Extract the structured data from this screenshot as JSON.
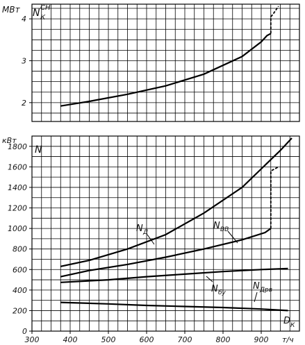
{
  "chart_data": [
    {
      "type": "line",
      "ylabel": "МВт",
      "symbol": "N",
      "symbol_sub": "К",
      "symbol_sup": "СН",
      "ylim": [
        1.55,
        4.35
      ],
      "xlim": [
        300,
        1000
      ],
      "yticks": [
        2,
        3,
        4
      ],
      "y_tick_labels": [
        "2",
        "3",
        "4"
      ],
      "grid": true,
      "series": [
        {
          "name": "",
          "x": [
            375,
            450,
            550,
            650,
            750,
            850,
            900,
            915,
            925
          ],
          "y": [
            1.92,
            2.03,
            2.2,
            2.4,
            2.68,
            3.1,
            3.45,
            3.6,
            3.65
          ],
          "style": "solid"
        },
        {
          "name": "",
          "x": [
            925,
            925,
            930,
            945
          ],
          "y": [
            3.65,
            4.05,
            4.1,
            4.3
          ],
          "style": "dashed-step"
        }
      ]
    },
    {
      "type": "line",
      "ylabel": "кВт",
      "symbol": "N",
      "xlabel": "т/ч",
      "xlabel_symbol": "D",
      "xlabel_symbol_sub": "К",
      "xlim": [
        300,
        1000
      ],
      "ylim": [
        0,
        1900
      ],
      "xticks": [
        300,
        400,
        500,
        600,
        700,
        800,
        900
      ],
      "x_tick_labels": [
        "300",
        "400",
        "500",
        "600",
        "700",
        "800",
        "900"
      ],
      "yticks": [
        0,
        200,
        400,
        600,
        800,
        1000,
        1200,
        1400,
        1600,
        1800
      ],
      "y_tick_labels": [
        "0",
        "200",
        "400",
        "600",
        "800",
        "1000",
        "1200",
        "1400",
        "1600",
        "1800"
      ],
      "grid": true,
      "series": [
        {
          "name": "N",
          "label_main": "N",
          "label_sub": "Д",
          "x": [
            375,
            450,
            550,
            650,
            750,
            850,
            950,
            980
          ],
          "y": [
            630,
            690,
            800,
            940,
            1150,
            1400,
            1760,
            1880
          ],
          "style": "solid"
        },
        {
          "name": "N",
          "label_main": "N",
          "label_sub": "ВВ",
          "x": [
            375,
            450,
            550,
            650,
            750,
            850,
            910,
            925
          ],
          "y": [
            530,
            590,
            650,
            720,
            800,
            890,
            960,
            1000
          ],
          "style": "solid"
        },
        {
          "name": "",
          "x": [
            925,
            925,
            945
          ],
          "y": [
            1000,
            1560,
            1600
          ],
          "style": "dashed-step"
        },
        {
          "name": "N",
          "label_main": "N",
          "label_sub": "бу",
          "x": [
            375,
            500,
            600,
            700,
            800,
            900,
            970
          ],
          "y": [
            475,
            500,
            530,
            555,
            580,
            600,
            610
          ],
          "style": "solid"
        },
        {
          "name": "N",
          "label_main": "N",
          "label_sub": "Дрв",
          "x": [
            375,
            500,
            600,
            700,
            800,
            900,
            970
          ],
          "y": [
            280,
            265,
            250,
            240,
            230,
            215,
            200
          ],
          "style": "solid"
        }
      ]
    }
  ]
}
